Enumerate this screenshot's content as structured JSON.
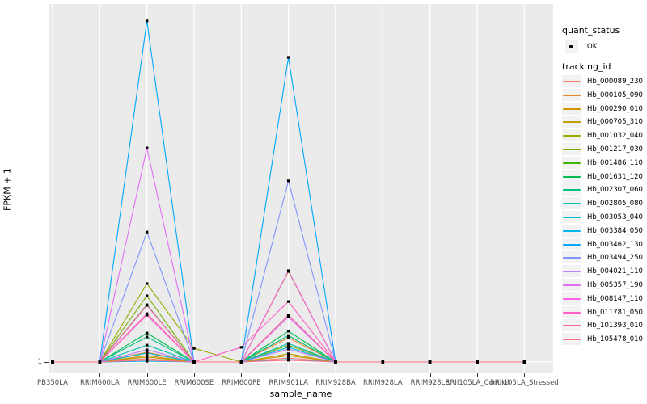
{
  "chart_data": {
    "type": "line",
    "title": "",
    "xlabel": "sample_name",
    "ylabel": "FPKM + 1",
    "y_ticks": [
      "1"
    ],
    "y_axis_note": "log-style axis; only the value 1 is labeled, at the baseline",
    "grid": "white major gridlines: one vertical per category, one horizontal at y=1",
    "legend_position": "right",
    "point_shape": "small black square at every sample for every series",
    "categories": [
      "PB350LA",
      "RRIM600LA",
      "RRIM600LE",
      "RRIM600SE",
      "RRIM600PE",
      "RRIM901LA",
      "RRIM928BA",
      "RRIM928LA",
      "RRIM928LE",
      "RRII105LA_Control",
      "RRII105LA_Stressed"
    ],
    "quant_status_legend": {
      "title": "quant_status",
      "items": [
        {
          "label": "OK"
        }
      ]
    },
    "tracking_id_legend_title": "tracking_id",
    "series": [
      {
        "name": "Hb_000089_230",
        "color": "#F8766D",
        "rel_heights": [
          0,
          0,
          0.009,
          0,
          0,
          0.011,
          0,
          0,
          0,
          0,
          0
        ]
      },
      {
        "name": "Hb_000105_090",
        "color": "#E88526",
        "rel_heights": [
          0,
          0,
          0.027,
          0,
          0,
          0.068,
          0,
          0,
          0,
          0,
          0
        ]
      },
      {
        "name": "Hb_000290_010",
        "color": "#D39200",
        "rel_heights": [
          0,
          0,
          0.018,
          0,
          0,
          0.018,
          0,
          0,
          0,
          0,
          0
        ]
      },
      {
        "name": "Hb_000705_310",
        "color": "#BB9D00",
        "rel_heights": [
          0,
          0,
          0.014,
          0,
          0,
          0.023,
          0,
          0,
          0,
          0,
          0
        ]
      },
      {
        "name": "Hb_001032_040",
        "color": "#9CA700",
        "rel_heights": [
          0,
          0,
          0.219,
          0.038,
          0,
          0.253,
          0,
          0,
          0,
          0,
          0
        ]
      },
      {
        "name": "Hb_001217_030",
        "color": "#75AF00",
        "rel_heights": [
          0,
          0,
          0.185,
          0,
          0,
          0.047,
          0,
          0,
          0,
          0,
          0
        ]
      },
      {
        "name": "Hb_001486_110",
        "color": "#3FB600",
        "rel_heights": [
          0,
          0,
          0.16,
          0,
          0,
          0.131,
          0,
          0,
          0,
          0,
          0
        ]
      },
      {
        "name": "Hb_001631_120",
        "color": "#00BC51",
        "rel_heights": [
          0,
          0,
          0.081,
          0,
          0,
          0.086,
          0,
          0,
          0,
          0,
          0
        ]
      },
      {
        "name": "Hb_002307_060",
        "color": "#00C087",
        "rel_heights": [
          0,
          0,
          0.07,
          0,
          0,
          0.074,
          0,
          0,
          0,
          0,
          0
        ]
      },
      {
        "name": "Hb_002805_080",
        "color": "#00C0B2",
        "rel_heights": [
          0,
          0,
          0.047,
          0,
          0,
          0.052,
          0,
          0,
          0,
          0,
          0
        ]
      },
      {
        "name": "Hb_003053_040",
        "color": "#00BDD4",
        "rel_heights": [
          0,
          0,
          0.025,
          0,
          0,
          0.041,
          0,
          0,
          0,
          0,
          0
        ]
      },
      {
        "name": "Hb_003384_050",
        "color": "#00B5EC",
        "rel_heights": [
          0,
          0,
          0.002,
          0,
          0,
          0.007,
          0,
          0,
          0,
          0,
          0
        ]
      },
      {
        "name": "Hb_003462_130",
        "color": "#00A7FD",
        "rel_heights": [
          0,
          0,
          0.953,
          0,
          0,
          0.851,
          0,
          0,
          0,
          0,
          0
        ]
      },
      {
        "name": "Hb_003494_250",
        "color": "#7F96FF",
        "rel_heights": [
          0,
          0,
          0.363,
          0,
          0,
          0.506,
          0,
          0,
          0,
          0,
          0
        ]
      },
      {
        "name": "Hb_004021_110",
        "color": "#BC81FF",
        "rel_heights": [
          0,
          0,
          0.034,
          0,
          0,
          0.036,
          0,
          0,
          0,
          0,
          0
        ]
      },
      {
        "name": "Hb_005357_190",
        "color": "#E26EF7",
        "rel_heights": [
          0,
          0,
          0.598,
          0,
          0,
          0.126,
          0,
          0,
          0,
          0,
          0
        ]
      },
      {
        "name": "Hb_008147_110",
        "color": "#F863E3",
        "rel_heights": [
          0,
          0,
          0.131,
          0,
          0,
          0.255,
          0,
          0,
          0,
          0,
          0
        ]
      },
      {
        "name": "Hb_011781_050",
        "color": "#FF61C7",
        "rel_heights": [
          0,
          0,
          0.158,
          0,
          0.041,
          0.169,
          0,
          0,
          0,
          0,
          0
        ]
      },
      {
        "name": "Hb_101393_010",
        "color": "#FF68A8",
        "rel_heights": [
          0,
          0,
          0.135,
          0,
          0,
          0.131,
          0,
          0,
          0,
          0,
          0
        ]
      },
      {
        "name": "Hb_105478_010",
        "color": "#FD7083",
        "rel_heights": [
          0,
          0,
          0.005,
          0,
          0,
          0.005,
          0,
          0,
          0,
          0,
          0
        ]
      }
    ]
  },
  "colors": {
    "panel_bg": "#EBEBEB",
    "gridline": "#FFFFFF",
    "legend_key_bg": "#F2F2F2",
    "tick_text": "#4D4D4D",
    "axis_title_text": "#000000",
    "point": "#000000"
  }
}
